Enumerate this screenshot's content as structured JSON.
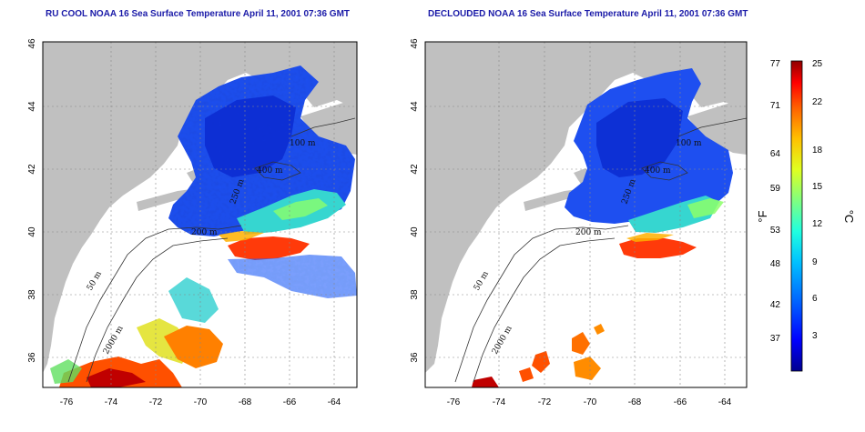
{
  "panels": [
    {
      "title": "RU COOL NOAA 16 Sea Surface Temperature April 11, 2001 07:36 GMT",
      "variant": "raw"
    },
    {
      "title": "DECLOUDED NOAA 16 Sea Surface Temperature April 11, 2001 07:36 GMT",
      "variant": "declouded"
    }
  ],
  "map": {
    "lat_ticks": [
      "36",
      "38",
      "40",
      "42",
      "44",
      "46"
    ],
    "lon_ticks": [
      "-76",
      "-74",
      "-72",
      "-70",
      "-68",
      "-66",
      "-64"
    ],
    "lat_range": [
      35,
      46
    ],
    "lon_range": [
      -77,
      -63
    ],
    "contour_labels": [
      "100 m",
      "400 m",
      "200 m",
      "50 m",
      "2000 m",
      "250 m"
    ],
    "land_color": "#c0c0c0",
    "grid_style": "dotted"
  },
  "colorbar": {
    "fahrenheit_ticks": [
      "77",
      "71",
      "64",
      "59",
      "53",
      "48",
      "42",
      "37"
    ],
    "celsius_ticks": [
      "25",
      "22",
      "18",
      "15",
      "12",
      "9",
      "6",
      "3"
    ],
    "fahrenheit_label": "°F",
    "celsius_label": "°C",
    "range_c": [
      0,
      25
    ],
    "colors": [
      "#00008f",
      "#0000ff",
      "#0060ff",
      "#00c0ff",
      "#20ffe0",
      "#80ff80",
      "#e0ff20",
      "#ffc000",
      "#ff6000",
      "#ff0000",
      "#8f0000"
    ]
  }
}
